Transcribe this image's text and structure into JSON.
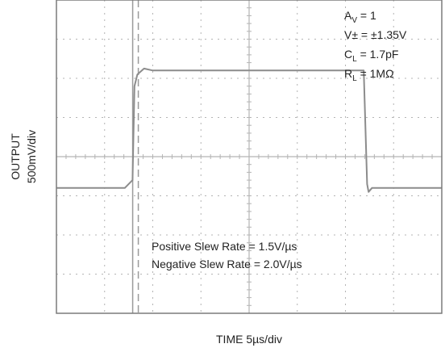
{
  "chart_data": {
    "type": "line",
    "title": "",
    "xlabel": "TIME 5µs/div",
    "ylabel_lines": [
      "OUTPUT",
      "500mV/div"
    ],
    "grid": true,
    "x_divisions": 8,
    "y_divisions": 8,
    "x_unit": "div",
    "y_unit": "div",
    "xlim": [
      0,
      8
    ],
    "ylim": [
      0,
      8
    ],
    "series": [
      {
        "values_x": [
          0,
          1.42,
          1.58,
          1.62,
          1.68,
          1.82,
          2.0,
          2.5,
          3.0,
          3.5,
          4.0,
          4.5,
          5.0,
          5.5,
          6.3,
          6.38,
          6.45,
          6.48,
          6.55,
          7.0,
          8.0
        ],
        "values_y": [
          3.2,
          3.2,
          3.4,
          5.8,
          6.1,
          6.25,
          6.2,
          6.2,
          6.2,
          6.2,
          6.2,
          6.2,
          6.2,
          6.2,
          6.2,
          6.2,
          3.3,
          3.1,
          3.2,
          3.2,
          3.2
        ]
      }
    ],
    "trigger_marker_x": 1.7,
    "annotations": {
      "av_label": "A",
      "av_sub": "V",
      "av_value": " = 1",
      "vs_text": "V± = ±1.35V",
      "cl_label": "C",
      "cl_sub": "L",
      "cl_value": " = 1.7pF",
      "rl_label": "R",
      "rl_sub": "L",
      "rl_value": " = 1MΩ",
      "slew_positive": "Positive Slew Rate = 1.5V/µs",
      "slew_negative": "Negative Slew Rate = 2.0V/µs"
    },
    "colors": {
      "frame": "#7a7a7a",
      "grid": "#b4b4b4",
      "trace": "#8c8c8c",
      "trigger": "#9a9a9a",
      "text": "#222222"
    }
  }
}
